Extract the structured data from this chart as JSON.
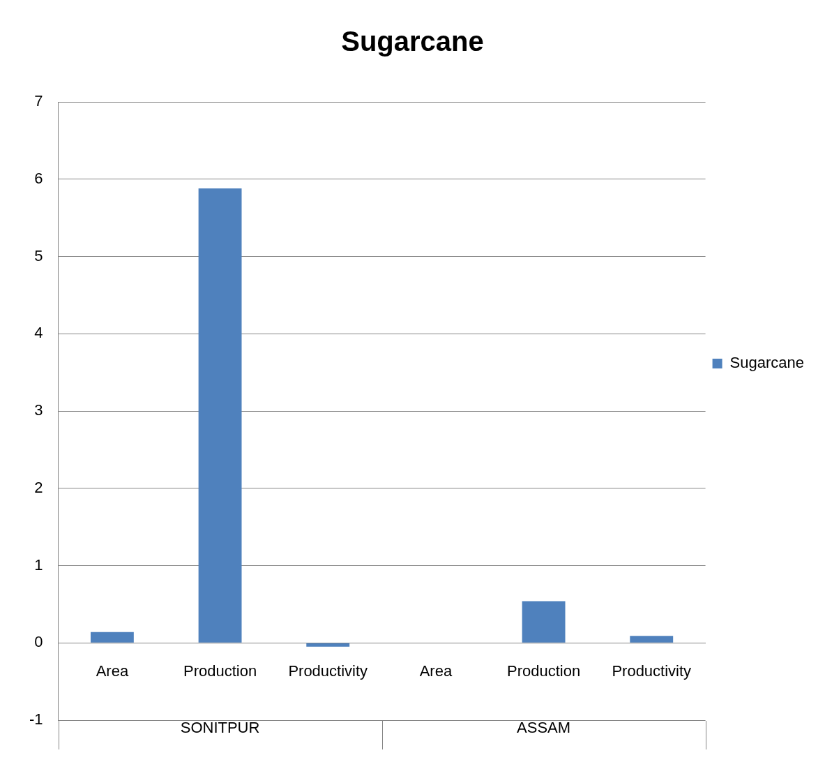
{
  "chart_data": {
    "type": "bar",
    "title": "Sugarcane",
    "categories": [
      "Area",
      "Production",
      "Productivity",
      "Area",
      "Production",
      "Productivity"
    ],
    "series": [
      {
        "name": "Sugarcane",
        "color": "#4f81bd",
        "values": [
          0.14,
          5.88,
          -0.05,
          0,
          0.54,
          0.09
        ]
      }
    ],
    "ylim": [
      -1,
      7
    ],
    "yticks": [
      -1,
      0,
      1,
      2,
      3,
      4,
      5,
      6,
      7
    ],
    "grid": "y",
    "legend": "right",
    "annotations": [
      "SONITPUR",
      "ASSAM"
    ]
  }
}
